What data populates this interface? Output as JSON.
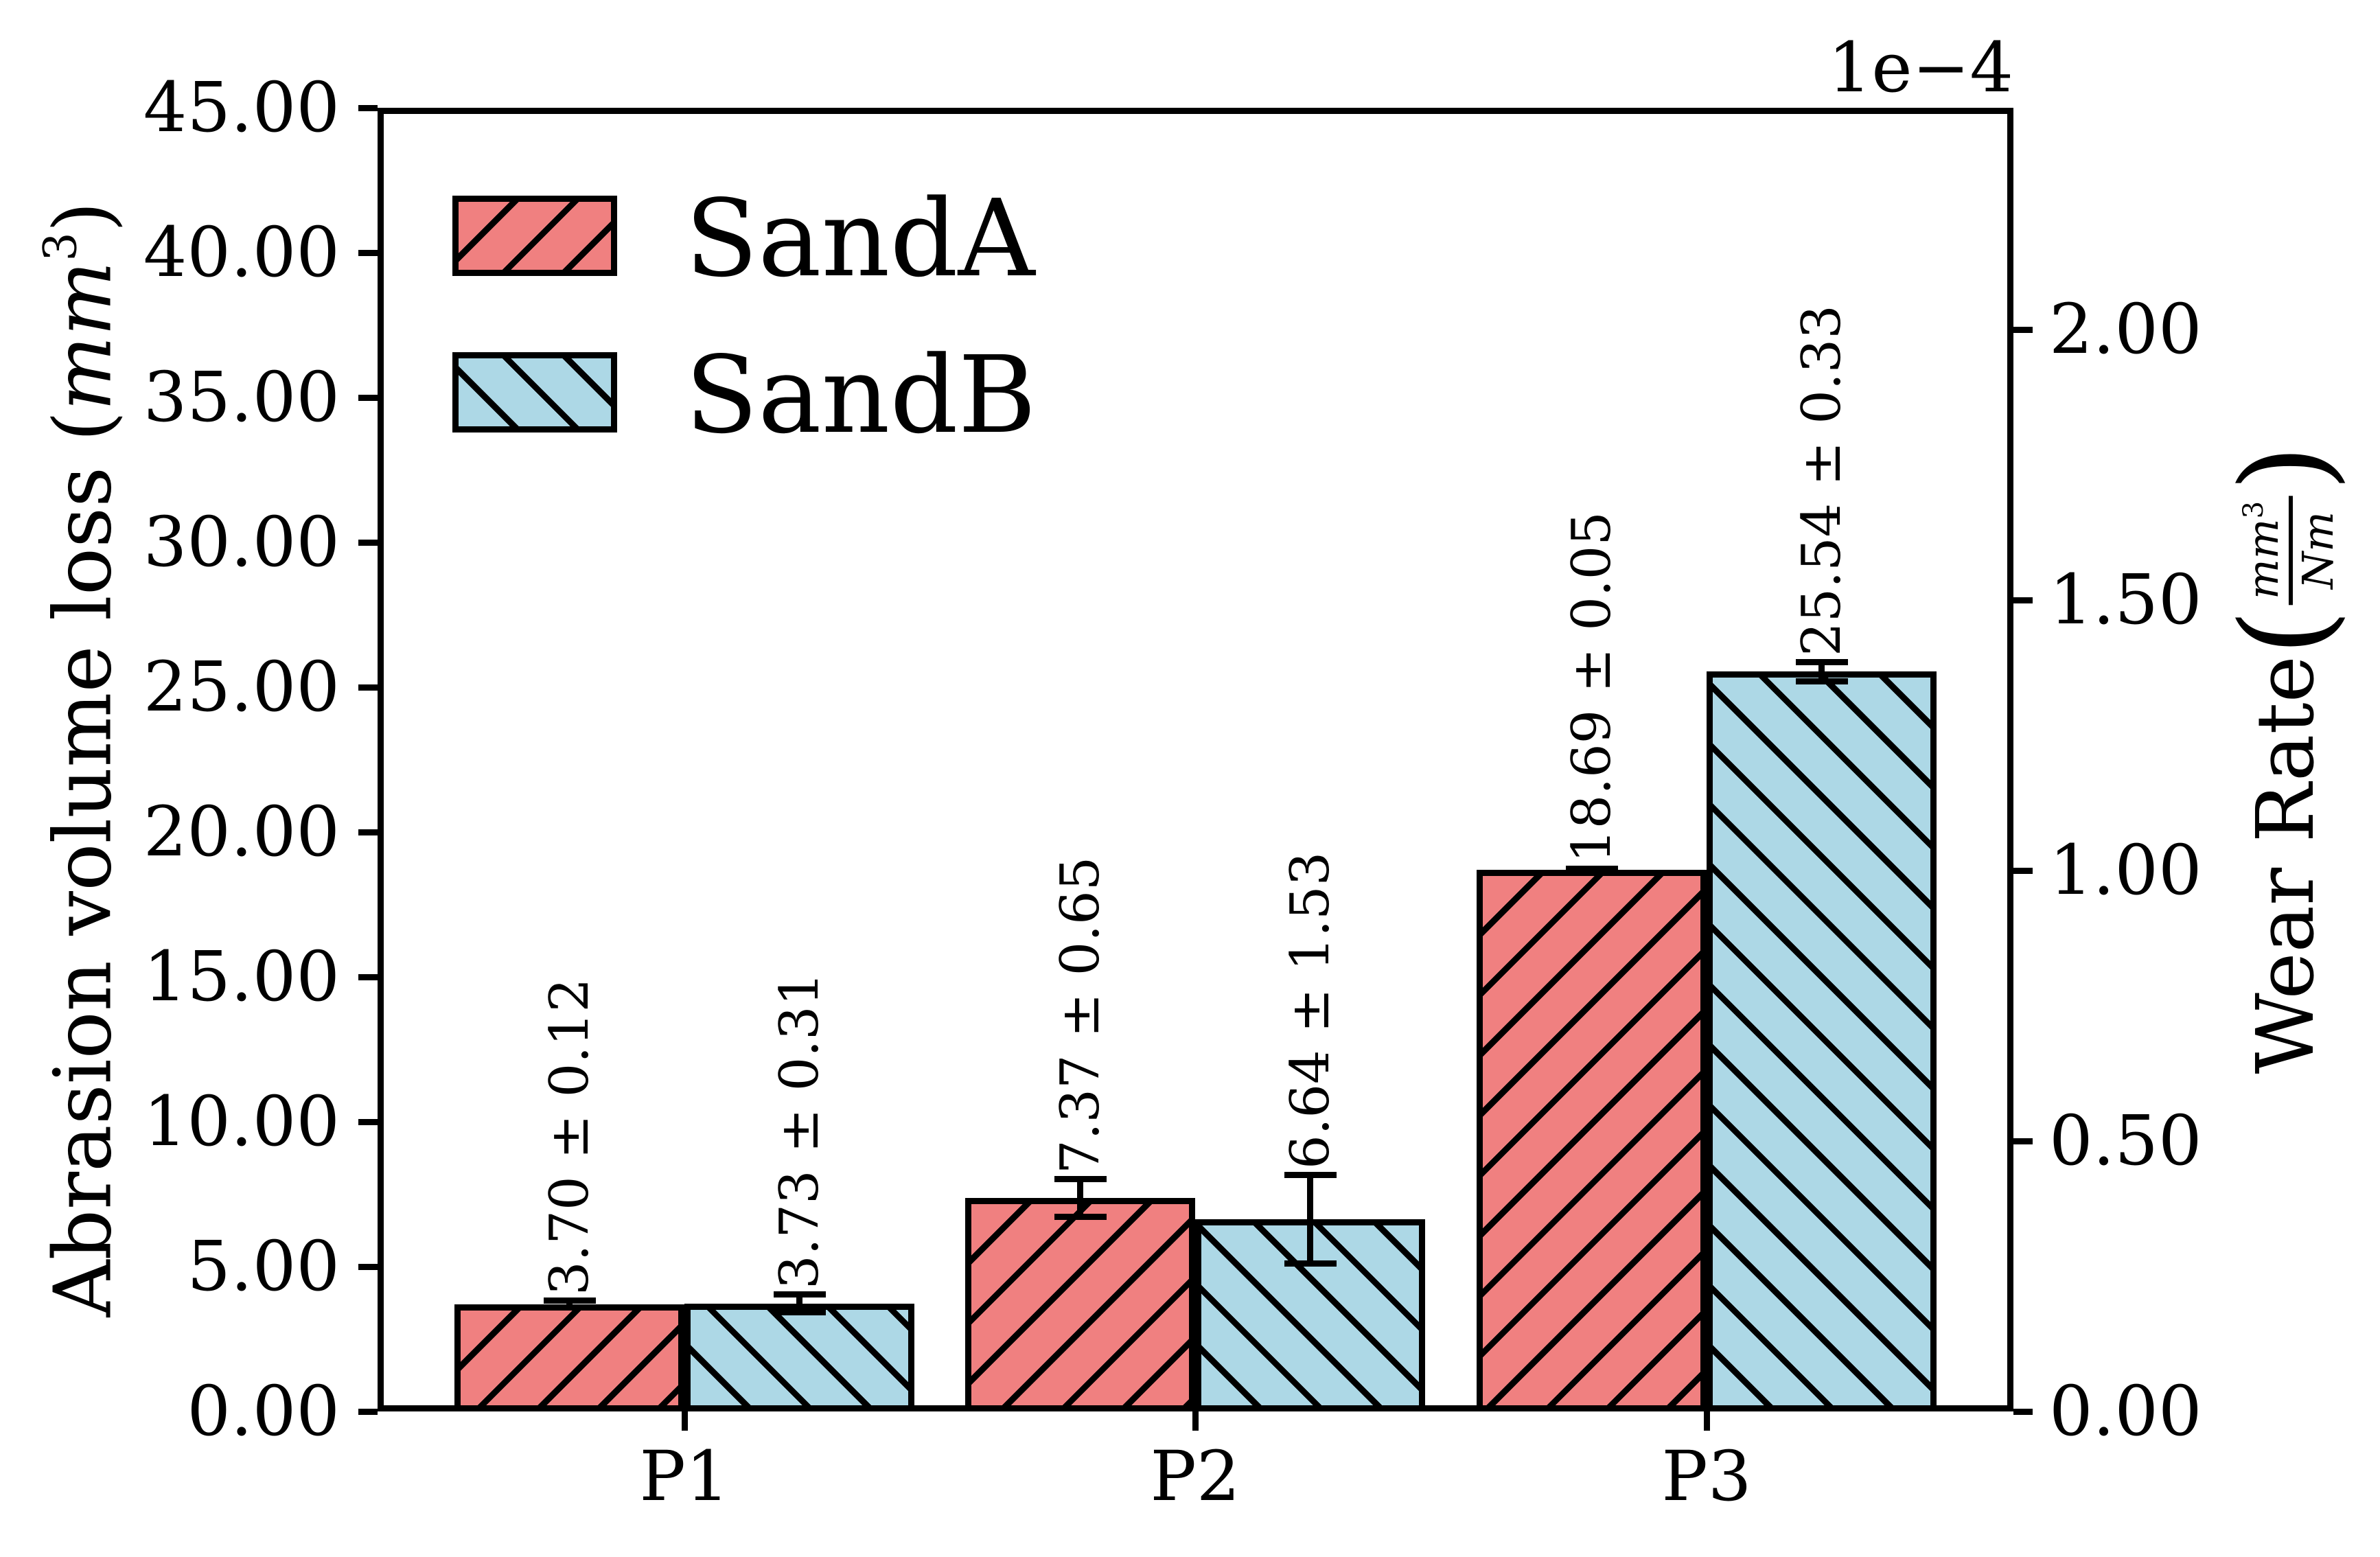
{
  "chart_data": {
    "type": "bar",
    "categories": [
      "P1",
      "P2",
      "P3"
    ],
    "series": [
      {
        "name": "SandA",
        "color": "#F08080",
        "hatch": "/",
        "values": [
          3.7,
          7.37,
          18.69
        ],
        "errors": [
          0.12,
          0.65,
          0.05
        ],
        "bar_labels": [
          "3.70 ± 0.12",
          "7.37 ± 0.65",
          "18.69 ± 0.05"
        ]
      },
      {
        "name": "SandB",
        "color": "#ADD8E6",
        "hatch": "\\",
        "values": [
          3.73,
          6.64,
          25.54
        ],
        "errors": [
          0.31,
          1.53,
          0.33
        ],
        "bar_labels": [
          "3.73 ± 0.31",
          "6.64 ± 1.53",
          "25.54 ± 0.33"
        ]
      }
    ],
    "left_axis": {
      "label": "Abrasion volume loss (mm³)",
      "ticks": [
        "0.00",
        "5.00",
        "10.00",
        "15.00",
        "20.00",
        "25.00",
        "30.00",
        "35.00",
        "40.00",
        "45.00"
      ],
      "tick_values": [
        0,
        5,
        10,
        15,
        20,
        25,
        30,
        35,
        40,
        45
      ],
      "range": [
        0,
        45
      ]
    },
    "right_axis": {
      "label": "Wear Rate (mm³/Nm)",
      "offset_text": "1e−4",
      "ticks": [
        "0.00",
        "0.50",
        "1.00",
        "1.50",
        "2.00"
      ],
      "tick_values": [
        0,
        0.5,
        1.0,
        1.5,
        2.0
      ],
      "range": [
        0,
        2.41
      ]
    },
    "x_axis": {
      "tick_labels": [
        "P1",
        "P2",
        "P3"
      ]
    },
    "legend": {
      "entries": [
        "SandA",
        "SandB"
      ],
      "location": "upper left"
    },
    "grid": false,
    "error_bars": true,
    "edge_color": "#000000"
  },
  "labels": {
    "left_axis": {
      "prefix": "Abrasion volume loss (",
      "unit_italic": "mm",
      "unit_sup": "3",
      "suffix": ")"
    },
    "right_axis": {
      "prefix": "Wear Rate ",
      "paren_open": "(",
      "frac_num_italic": "mm",
      "frac_num_sup": "3",
      "frac_den_italic": "Nm",
      "paren_close": ")"
    }
  }
}
